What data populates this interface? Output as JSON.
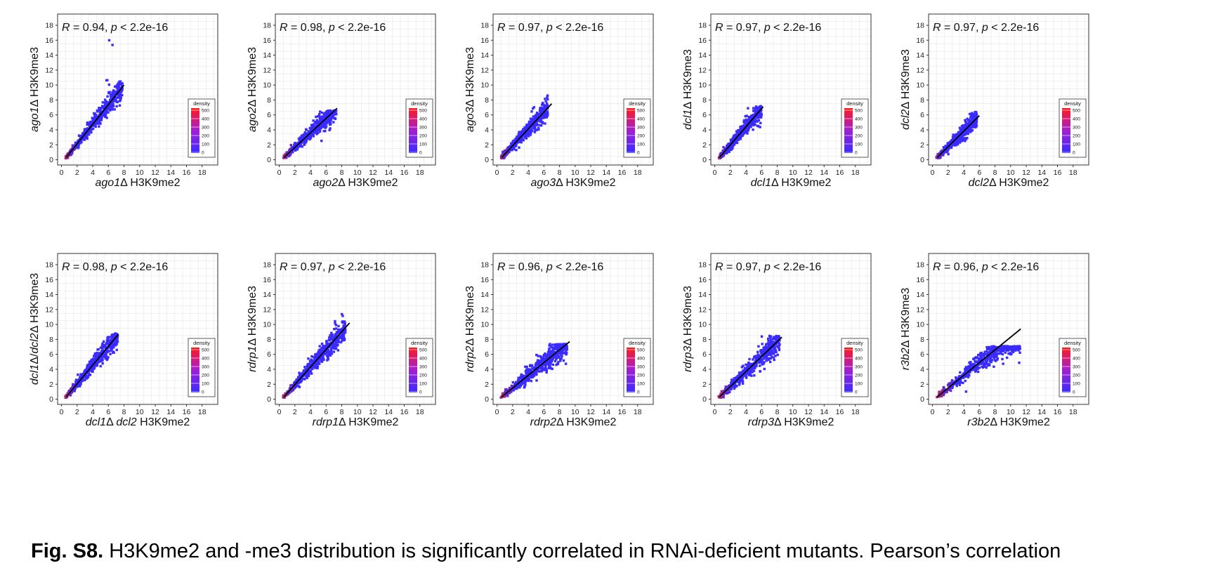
{
  "caption": {
    "label": "Fig. S8.",
    "text": "H3K9me2 and -me3 distribution is significantly correlated in RNAi-deficient mutants. Pearson’s correlation"
  },
  "legend": {
    "title": "density",
    "ticks": [
      "500",
      "400",
      "300",
      "200",
      "100",
      "0"
    ],
    "range": [
      0,
      500
    ]
  },
  "colors": {
    "low": "#3a2bff",
    "high": "#ff1a1a",
    "fit": "#000000",
    "grid": "#e6e6e6"
  },
  "chart_data": [
    {
      "type": "scatter",
      "id": "ago1",
      "stat": "R = 0.94, p < 2.2e-16",
      "xlabel": {
        "italic": "ago1",
        "plain": "Δ H3K9me2"
      },
      "ylabel": {
        "italic": "ago1",
        "plain": "Δ H3K9me3"
      },
      "xlim": [
        -0.5,
        20
      ],
      "ylim": [
        -0.7,
        19.5
      ],
      "ticks": [
        0,
        2,
        4,
        6,
        8,
        10,
        12,
        14,
        16,
        18
      ],
      "cloud_extent": {
        "x_max": 7.8,
        "y_max": 16.2
      },
      "fit": {
        "x": [
          0.6,
          8.0
        ],
        "y": [
          0.3,
          10.0
        ]
      }
    },
    {
      "type": "scatter",
      "id": "ago2",
      "stat": "R = 0.98, p < 2.2e-16",
      "xlabel": {
        "italic": "ago2",
        "plain": "Δ H3K9me2"
      },
      "ylabel": {
        "italic": "ago2",
        "plain": "Δ H3K9me3"
      },
      "xlim": [
        -0.5,
        20
      ],
      "ylim": [
        -0.7,
        19.5
      ],
      "ticks": [
        0,
        2,
        4,
        6,
        8,
        10,
        12,
        14,
        16,
        18
      ],
      "cloud_extent": {
        "x_max": 7.3,
        "y_max": 6.6
      },
      "fit": {
        "x": [
          0.6,
          7.4
        ],
        "y": [
          0.3,
          6.9
        ]
      }
    },
    {
      "type": "scatter",
      "id": "ago3",
      "stat": "R = 0.97, p < 2.2e-16",
      "xlabel": {
        "italic": "ago3",
        "plain": "Δ H3K9me2"
      },
      "ylabel": {
        "italic": "ago3",
        "plain": "Δ H3K9me3"
      },
      "xlim": [
        -0.5,
        20
      ],
      "ylim": [
        -0.7,
        19.5
      ],
      "ticks": [
        0,
        2,
        4,
        6,
        8,
        10,
        12,
        14,
        16,
        18
      ],
      "cloud_extent": {
        "x_max": 6.5,
        "y_max": 9.0
      },
      "fit": {
        "x": [
          0.6,
          7.0
        ],
        "y": [
          0.3,
          7.5
        ]
      }
    },
    {
      "type": "scatter",
      "id": "dcl1",
      "stat": "R = 0.97, p < 2.2e-16",
      "xlabel": {
        "italic": "dcl1",
        "plain": "Δ H3K9me2"
      },
      "ylabel": {
        "italic": "dcl1",
        "plain": "Δ H3K9me3"
      },
      "xlim": [
        -0.5,
        20
      ],
      "ylim": [
        -0.7,
        19.5
      ],
      "ticks": [
        0,
        2,
        4,
        6,
        8,
        10,
        12,
        14,
        16,
        18
      ],
      "cloud_extent": {
        "x_max": 6.0,
        "y_max": 7.2
      },
      "fit": {
        "x": [
          0.6,
          6.2
        ],
        "y": [
          0.3,
          7.1
        ]
      }
    },
    {
      "type": "scatter",
      "id": "dcl2",
      "stat": "R = 0.97, p < 2.2e-16",
      "xlabel": {
        "italic": "dcl2",
        "plain": "Δ H3K9me2"
      },
      "ylabel": {
        "italic": "dcl2",
        "plain": "Δ H3K9me3"
      },
      "xlim": [
        -0.5,
        20
      ],
      "ylim": [
        -0.7,
        19.5
      ],
      "ticks": [
        0,
        2,
        4,
        6,
        8,
        10,
        12,
        14,
        16,
        18
      ],
      "cloud_extent": {
        "x_max": 5.7,
        "y_max": 6.4
      },
      "fit": {
        "x": [
          0.6,
          6.0
        ],
        "y": [
          0.3,
          5.9
        ]
      }
    },
    {
      "type": "scatter",
      "id": "dcl1dcl2",
      "stat": "R = 0.98, p < 2.2e-16",
      "xlabel": {
        "italic": "dcl1",
        "plain": "Δ ",
        "italic2": "dcl2",
        "plain2": " H3K9me2"
      },
      "ylabel": {
        "italic": "dcl1",
        "plain": "Δ/",
        "italic2": "dcl2",
        "plain2": "Δ H3K9me3"
      },
      "xlim": [
        -0.5,
        20
      ],
      "ylim": [
        -0.7,
        19.5
      ],
      "ticks": [
        0,
        2,
        4,
        6,
        8,
        10,
        12,
        14,
        16,
        18
      ],
      "cloud_extent": {
        "x_max": 7.2,
        "y_max": 8.8
      },
      "fit": {
        "x": [
          0.6,
          7.3
        ],
        "y": [
          0.3,
          8.7
        ]
      }
    },
    {
      "type": "scatter",
      "id": "rdrp1",
      "stat": "R = 0.97, p < 2.2e-16",
      "xlabel": {
        "italic": "rdrp1",
        "plain": "Δ H3K9me2"
      },
      "ylabel": {
        "italic": "rdrp1",
        "plain": "Δ H3K9me3"
      },
      "xlim": [
        -0.5,
        20
      ],
      "ylim": [
        -0.7,
        19.5
      ],
      "ticks": [
        0,
        2,
        4,
        6,
        8,
        10,
        12,
        14,
        16,
        18
      ],
      "cloud_extent": {
        "x_max": 8.5,
        "y_max": 12.0
      },
      "fit": {
        "x": [
          0.6,
          9.0
        ],
        "y": [
          0.3,
          10.2
        ]
      }
    },
    {
      "type": "scatter",
      "id": "rdrp2",
      "stat": "R = 0.96, p < 2.2e-16",
      "xlabel": {
        "italic": "rdrp2",
        "plain": "Δ H3K9me2"
      },
      "ylabel": {
        "italic": "rdrp2",
        "plain": "Δ H3K9me3"
      },
      "xlim": [
        -0.5,
        20
      ],
      "ylim": [
        -0.7,
        19.5
      ],
      "ticks": [
        0,
        2,
        4,
        6,
        8,
        10,
        12,
        14,
        16,
        18
      ],
      "cloud_extent": {
        "x_max": 9.0,
        "y_max": 7.4
      },
      "fit": {
        "x": [
          0.6,
          9.3
        ],
        "y": [
          0.3,
          7.7
        ]
      }
    },
    {
      "type": "scatter",
      "id": "rdrp3",
      "stat": "R = 0.97, p < 2.2e-16",
      "xlabel": {
        "italic": "rdrp3",
        "plain": "Δ H3K9me2"
      },
      "ylabel": {
        "italic": "rdrp3",
        "plain": "Δ H3K9me3"
      },
      "xlim": [
        -0.5,
        20
      ],
      "ylim": [
        -0.7,
        19.5
      ],
      "ticks": [
        0,
        2,
        4,
        6,
        8,
        10,
        12,
        14,
        16,
        18
      ],
      "cloud_extent": {
        "x_max": 8.3,
        "y_max": 8.5
      },
      "fit": {
        "x": [
          0.6,
          8.6
        ],
        "y": [
          0.3,
          8.3
        ]
      }
    },
    {
      "type": "scatter",
      "id": "r3b2",
      "stat": "R = 0.96, p < 2.2e-16",
      "xlabel": {
        "italic": "r3b2",
        "plain": "Δ H3K9me2"
      },
      "ylabel": {
        "italic": "r3b2",
        "plain": "Δ H3K9me3"
      },
      "xlim": [
        -0.5,
        20
      ],
      "ylim": [
        -0.7,
        19.5
      ],
      "ticks": [
        0,
        2,
        4,
        6,
        8,
        10,
        12,
        14,
        16,
        18
      ],
      "cloud_extent": {
        "x_max": 11.2,
        "y_max": 7.1
      },
      "fit": {
        "x": [
          0.6,
          11.3
        ],
        "y": [
          0.3,
          9.4
        ]
      }
    }
  ]
}
